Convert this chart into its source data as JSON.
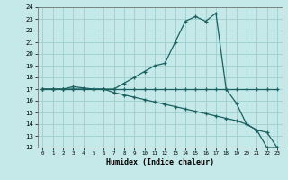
{
  "title": "",
  "xlabel": "Humidex (Indice chaleur)",
  "xlim": [
    -0.5,
    23.5
  ],
  "ylim": [
    12,
    24
  ],
  "xticks": [
    0,
    1,
    2,
    3,
    4,
    5,
    6,
    7,
    8,
    9,
    10,
    11,
    12,
    13,
    14,
    15,
    16,
    17,
    18,
    19,
    20,
    21,
    22,
    23
  ],
  "yticks": [
    12,
    13,
    14,
    15,
    16,
    17,
    18,
    19,
    20,
    21,
    22,
    23,
    24
  ],
  "bg_color": "#c5e8e8",
  "grid_color": "#9ecece",
  "line_color": "#1a6060",
  "series1_x": [
    0,
    1,
    2,
    3,
    4,
    5,
    6,
    7,
    8,
    9,
    10,
    11,
    12,
    13,
    14,
    15,
    16,
    17,
    18,
    19,
    20,
    21,
    22,
    23
  ],
  "series1_y": [
    17,
    17,
    17,
    17.2,
    17.1,
    17,
    17,
    17,
    17.5,
    18,
    18.5,
    19,
    19.2,
    21,
    22.8,
    23.2,
    22.8,
    23.5,
    17,
    15.8,
    14,
    13.5,
    12,
    12
  ],
  "series2_x": [
    0,
    1,
    2,
    3,
    4,
    5,
    6,
    7,
    8,
    9,
    10,
    11,
    12,
    13,
    14,
    15,
    16,
    17,
    18,
    19,
    20,
    21,
    22,
    23
  ],
  "series2_y": [
    17,
    17,
    17,
    17,
    17,
    17,
    17,
    17,
    17,
    17,
    17,
    17,
    17,
    17,
    17,
    17,
    17,
    17,
    17,
    17,
    17,
    17,
    17,
    17
  ],
  "series3_x": [
    0,
    1,
    2,
    3,
    4,
    5,
    6,
    7,
    8,
    9,
    10,
    11,
    12,
    13,
    14,
    15,
    16,
    17,
    18,
    19,
    20,
    21,
    22,
    23
  ],
  "series3_y": [
    17,
    17,
    17,
    17,
    17,
    17,
    17,
    16.7,
    16.5,
    16.3,
    16.1,
    15.9,
    15.7,
    15.5,
    15.3,
    15.1,
    14.9,
    14.7,
    14.5,
    14.3,
    14.0,
    13.5,
    13.3,
    12
  ]
}
